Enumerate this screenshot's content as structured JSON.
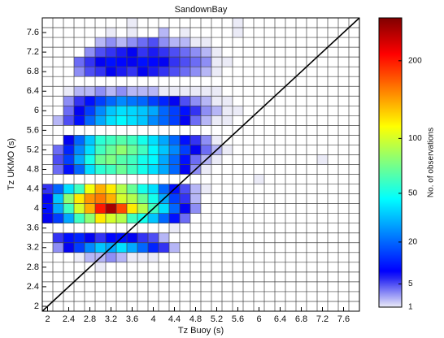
{
  "chart_data": {
    "type": "heatmap",
    "title": "SandownBay",
    "xlabel": "Tz Buoy (s)",
    "ylabel": "Tz UKMO (s)",
    "colorbar_label": "No. of observations",
    "xbins": [
      1.9,
      2.1,
      2.3,
      2.5,
      2.7,
      2.9,
      3.1,
      3.3,
      3.5,
      3.7,
      3.9,
      4.1,
      4.3,
      4.5,
      4.7,
      4.9,
      5.1,
      5.3,
      5.5,
      5.7,
      5.9,
      6.1,
      6.3,
      6.5,
      6.7,
      6.9,
      7.1,
      7.3,
      7.5,
      7.7,
      7.9
    ],
    "ybins": [
      1.9,
      2.1,
      2.3,
      2.5,
      2.7,
      2.9,
      3.1,
      3.3,
      3.5,
      3.7,
      3.9,
      4.1,
      4.3,
      4.5,
      4.7,
      4.9,
      5.1,
      5.3,
      5.5,
      5.7,
      5.9,
      6.1,
      6.3,
      6.5,
      6.7,
      6.9,
      7.1,
      7.3,
      7.5,
      7.7,
      7.9
    ],
    "xlim": [
      1.9,
      7.9
    ],
    "ylim": [
      1.9,
      7.9
    ],
    "xticks": [
      2,
      2.4,
      2.8,
      3.2,
      3.6,
      4,
      4.4,
      4.8,
      5.2,
      5.6,
      6,
      6.4,
      6.8,
      7.2,
      7.6
    ],
    "yticks": [
      2,
      2.4,
      2.8,
      3.2,
      3.6,
      4,
      4.4,
      4.8,
      5.2,
      5.6,
      6,
      6.4,
      6.8,
      7.2,
      7.6
    ],
    "color_scale": "sqrt",
    "colormap": "jet",
    "clim": [
      1,
      270
    ],
    "cticks": [
      1,
      5,
      20,
      50,
      100,
      200
    ],
    "values": [
      [
        0,
        0,
        0,
        0,
        0,
        0,
        0,
        0,
        0,
        0,
        0,
        0,
        0,
        0,
        0,
        0,
        0,
        0,
        0,
        0,
        0,
        0,
        0,
        0,
        0,
        0,
        0,
        0,
        0,
        0
      ],
      [
        0,
        0,
        0,
        0,
        0,
        0,
        0,
        0,
        0,
        0,
        0,
        0,
        0,
        0,
        0,
        0,
        0,
        0,
        0,
        0,
        0,
        0,
        0,
        0,
        0,
        0,
        0,
        0,
        0,
        0
      ],
      [
        0,
        0,
        0,
        0,
        0,
        0,
        0,
        0,
        0,
        0,
        0,
        0,
        0,
        0,
        0,
        0,
        0,
        0,
        0,
        0,
        0,
        0,
        0,
        0,
        0,
        0,
        0,
        0,
        0,
        0
      ],
      [
        0,
        0,
        0,
        0,
        0,
        0,
        0,
        0,
        0,
        0,
        0,
        0,
        0,
        0,
        0,
        0,
        0,
        0,
        0,
        0,
        0,
        0,
        0,
        0,
        0,
        0,
        0,
        0,
        0,
        0
      ],
      [
        0,
        0,
        0,
        0,
        0,
        1,
        0,
        0,
        0,
        0,
        0,
        0,
        0,
        0,
        0,
        0,
        0,
        0,
        0,
        0,
        0,
        0,
        0,
        0,
        0,
        0,
        0,
        0,
        0,
        0
      ],
      [
        0,
        0,
        0,
        1,
        2,
        2,
        3,
        2,
        1,
        1,
        1,
        0,
        0,
        0,
        0,
        0,
        0,
        0,
        0,
        0,
        0,
        0,
        0,
        0,
        0,
        0,
        0,
        0,
        0,
        0
      ],
      [
        0,
        3,
        8,
        15,
        25,
        35,
        30,
        40,
        30,
        20,
        12,
        6,
        2,
        0,
        0,
        0,
        0,
        0,
        0,
        0,
        0,
        0,
        0,
        0,
        0,
        0,
        0,
        0,
        0,
        0
      ],
      [
        0,
        6,
        10,
        12,
        8,
        6,
        9,
        10,
        8,
        6,
        5,
        2,
        0,
        0,
        0,
        0,
        0,
        0,
        0,
        0,
        0,
        0,
        0,
        0,
        0,
        0,
        0,
        0,
        0,
        0
      ],
      [
        0,
        0,
        0,
        0,
        0,
        0,
        0,
        0,
        0,
        0,
        0,
        0,
        1,
        0,
        0,
        0,
        0,
        0,
        0,
        0,
        0,
        0,
        0,
        0,
        0,
        0,
        0,
        0,
        0,
        0
      ],
      [
        8,
        15,
        30,
        60,
        80,
        120,
        100,
        90,
        60,
        50,
        35,
        20,
        10,
        4,
        0,
        0,
        0,
        0,
        0,
        0,
        0,
        0,
        0,
        0,
        0,
        0,
        0,
        0,
        0,
        0
      ],
      [
        10,
        30,
        60,
        100,
        140,
        200,
        250,
        180,
        120,
        90,
        60,
        40,
        20,
        8,
        3,
        0,
        0,
        0,
        0,
        0,
        0,
        0,
        0,
        0,
        0,
        0,
        0,
        0,
        0,
        0
      ],
      [
        8,
        35,
        80,
        120,
        150,
        160,
        140,
        100,
        90,
        70,
        50,
        30,
        15,
        6,
        2,
        0,
        0,
        0,
        0,
        0,
        0,
        0,
        0,
        0,
        0,
        0,
        0,
        0,
        0,
        0
      ],
      [
        6,
        20,
        40,
        60,
        110,
        140,
        120,
        90,
        70,
        50,
        40,
        20,
        10,
        5,
        2,
        1,
        0,
        0,
        0,
        0,
        0,
        0,
        0,
        0,
        0,
        0,
        0,
        0,
        0,
        0
      ],
      [
        0,
        0,
        0,
        0,
        0,
        0,
        0,
        0,
        0,
        0,
        0,
        0,
        0,
        0,
        0,
        0,
        0,
        0,
        0,
        0,
        1,
        0,
        0,
        0,
        0,
        0,
        0,
        0,
        0,
        0
      ],
      [
        0,
        4,
        10,
        20,
        40,
        55,
        60,
        70,
        60,
        50,
        40,
        30,
        20,
        8,
        3,
        1,
        0,
        0,
        0,
        0,
        0,
        0,
        0,
        0,
        0,
        0,
        0,
        0,
        0,
        0
      ],
      [
        0,
        5,
        15,
        30,
        50,
        70,
        75,
        65,
        60,
        50,
        45,
        30,
        20,
        10,
        4,
        2,
        1,
        0,
        0,
        0,
        0,
        0,
        0,
        0,
        0,
        0,
        1,
        0,
        0,
        0
      ],
      [
        0,
        4,
        12,
        25,
        40,
        60,
        70,
        80,
        70,
        60,
        45,
        35,
        25,
        15,
        8,
        4,
        2,
        1,
        0,
        0,
        0,
        0,
        0,
        0,
        0,
        0,
        0,
        0,
        0,
        0
      ],
      [
        0,
        0,
        8,
        20,
        35,
        55,
        60,
        65,
        60,
        50,
        40,
        30,
        20,
        10,
        6,
        3,
        1,
        0,
        0,
        0,
        0,
        0,
        0,
        0,
        0,
        0,
        0,
        0,
        0,
        0
      ],
      [
        0,
        0,
        0,
        0,
        0,
        0,
        0,
        0,
        0,
        0,
        0,
        0,
        0,
        0,
        0,
        0,
        0,
        0,
        0,
        0,
        0,
        0,
        0,
        0,
        0,
        0,
        0,
        0,
        0,
        0
      ],
      [
        0,
        2,
        5,
        10,
        20,
        30,
        40,
        45,
        40,
        35,
        25,
        20,
        15,
        8,
        4,
        2,
        1,
        1,
        0,
        0,
        0,
        0,
        0,
        0,
        0,
        0,
        0,
        0,
        0,
        0
      ],
      [
        0,
        0,
        4,
        8,
        15,
        25,
        35,
        40,
        38,
        35,
        30,
        20,
        15,
        10,
        6,
        3,
        2,
        1,
        1,
        0,
        0,
        0,
        0,
        0,
        0,
        0,
        0,
        0,
        0,
        0
      ],
      [
        0,
        0,
        3,
        6,
        10,
        15,
        20,
        25,
        22,
        20,
        15,
        12,
        8,
        5,
        3,
        2,
        1,
        1,
        0,
        0,
        0,
        0,
        0,
        0,
        0,
        0,
        0,
        0,
        0,
        0
      ],
      [
        0,
        0,
        1,
        2,
        2,
        3,
        2,
        3,
        2,
        2,
        2,
        1,
        1,
        1,
        1,
        1,
        1,
        0,
        0,
        0,
        0,
        0,
        0,
        0,
        0,
        0,
        0,
        0,
        0,
        0
      ],
      [
        0,
        0,
        0,
        0,
        0,
        0,
        0,
        0,
        0,
        0,
        0,
        0,
        0,
        0,
        0,
        0,
        0,
        0,
        0,
        0,
        0,
        0,
        0,
        0,
        0,
        0,
        0,
        0,
        0,
        0
      ],
      [
        0,
        0,
        0,
        3,
        5,
        6,
        8,
        7,
        6,
        8,
        7,
        6,
        5,
        4,
        3,
        2,
        1,
        0,
        0,
        0,
        0,
        0,
        0,
        0,
        0,
        0,
        0,
        0,
        0,
        0
      ],
      [
        0,
        0,
        0,
        4,
        6,
        8,
        10,
        9,
        8,
        10,
        9,
        8,
        6,
        5,
        4,
        3,
        1,
        1,
        0,
        0,
        0,
        0,
        0,
        0,
        0,
        0,
        0,
        0,
        0,
        0
      ],
      [
        0,
        0,
        0,
        0,
        3,
        5,
        6,
        7,
        8,
        6,
        7,
        6,
        5,
        4,
        3,
        2,
        1,
        0,
        0,
        0,
        0,
        0,
        0,
        0,
        0,
        0,
        0,
        0,
        0,
        0
      ],
      [
        0,
        0,
        0,
        0,
        0,
        2,
        3,
        2,
        3,
        4,
        5,
        3,
        2,
        2,
        1,
        1,
        0,
        0,
        0,
        0,
        0,
        0,
        0,
        0,
        0,
        0,
        0,
        0,
        0,
        0
      ],
      [
        0,
        0,
        0,
        0,
        0,
        0,
        1,
        0,
        1,
        0,
        0,
        2,
        0,
        1,
        0,
        0,
        0,
        0,
        1,
        0,
        0,
        0,
        0,
        0,
        0,
        0,
        0,
        0,
        0,
        0
      ],
      [
        0,
        0,
        0,
        0,
        0,
        0,
        0,
        0,
        1,
        0,
        0,
        0,
        0,
        0,
        0,
        0,
        0,
        0,
        1,
        0,
        0,
        0,
        0,
        0,
        0,
        0,
        0,
        0,
        0,
        0
      ]
    ]
  }
}
